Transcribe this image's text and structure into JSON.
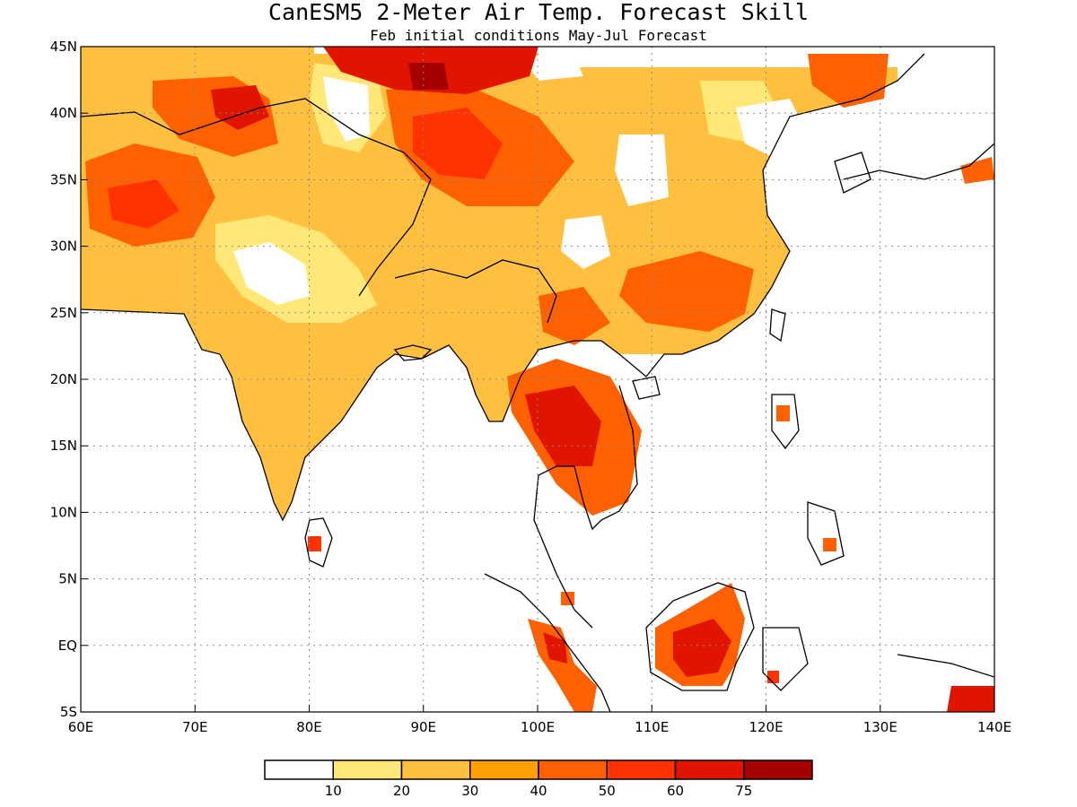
{
  "title": "CanESM5 2-Meter Air Temp. Forecast Skill",
  "subtitle": "Feb initial conditions  May-Jul Forecast",
  "map": {
    "lon_range": [
      60,
      140
    ],
    "lat_range": [
      -5,
      45
    ],
    "lon_ticks": [
      {
        "v": 60,
        "label": "60E"
      },
      {
        "v": 70,
        "label": "70E"
      },
      {
        "v": 80,
        "label": "80E"
      },
      {
        "v": 90,
        "label": "90E"
      },
      {
        "v": 100,
        "label": "100E"
      },
      {
        "v": 110,
        "label": "110E"
      },
      {
        "v": 120,
        "label": "120E"
      },
      {
        "v": 130,
        "label": "130E"
      },
      {
        "v": 140,
        "label": "140E"
      }
    ],
    "lat_ticks": [
      {
        "v": 45,
        "label": "45N"
      },
      {
        "v": 40,
        "label": "40N"
      },
      {
        "v": 35,
        "label": "35N"
      },
      {
        "v": 30,
        "label": "30N"
      },
      {
        "v": 25,
        "label": "25N"
      },
      {
        "v": 20,
        "label": "20N"
      },
      {
        "v": 15,
        "label": "15N"
      },
      {
        "v": 10,
        "label": "10N"
      },
      {
        "v": 5,
        "label": "5N"
      },
      {
        "v": 0,
        "label": "EQ"
      },
      {
        "v": -5,
        "label": "5S"
      }
    ],
    "gridlines": true
  },
  "colorbar": {
    "bins": [
      {
        "color": "#ffffff"
      },
      {
        "color": "#ffe878"
      },
      {
        "color": "#ffc040"
      },
      {
        "color": "#ffa000"
      },
      {
        "color": "#ff6000"
      },
      {
        "color": "#ff3200"
      },
      {
        "color": "#e11400"
      },
      {
        "color": "#a50000"
      }
    ],
    "labels": [
      "10",
      "20",
      "30",
      "40",
      "50",
      "60",
      "75"
    ]
  },
  "legend_colors": {
    "white": "#ffffff",
    "light_yellow": "#ffe878",
    "light_orange": "#ffc040",
    "orange": "#ffa000",
    "dark_orange": "#ff6000",
    "red_orange": "#ff3200",
    "red": "#e11400",
    "dark_red": "#a50000"
  }
}
